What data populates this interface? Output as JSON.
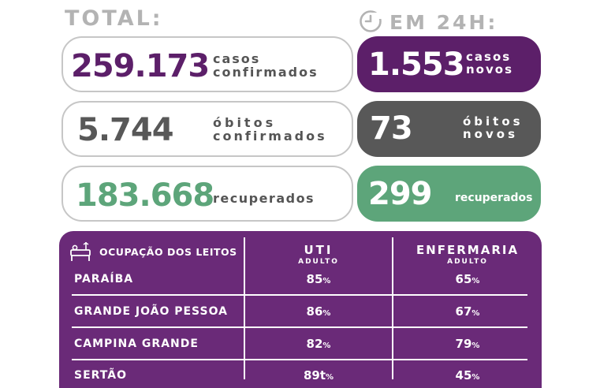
{
  "header": {
    "total": "TOTAL:",
    "last24h": "EM 24H:"
  },
  "icons": {
    "clock": "clock-24h-icon",
    "bed": "hospital-bed-icon"
  },
  "colors": {
    "purple": "#5c1f69",
    "gray": "#585858",
    "green": "#5da57a",
    "panel": "#6a2a78"
  },
  "total": {
    "cases": {
      "value": "259.173",
      "line1": "casos",
      "line2": "confirmados"
    },
    "deaths": {
      "value": "5.744",
      "line1": "óbitos",
      "line2": "confirmados"
    },
    "recovered": {
      "value": "183.668",
      "line1": "recuperados"
    }
  },
  "last24h": {
    "cases": {
      "value": "1.553",
      "line1": "casos",
      "line2": "novos"
    },
    "deaths": {
      "value": "73",
      "line1": "óbitos",
      "line2": "novos"
    },
    "recovered": {
      "value": "299",
      "line1": "recuperados"
    }
  },
  "occupancy": {
    "title": "OCUPAÇÃO DOS LEITOS",
    "uti": {
      "label": "UTI",
      "sub": "ADULTO"
    },
    "ward": {
      "label": "ENFERMARIA",
      "sub": "ADULTO"
    },
    "rows": [
      {
        "region": "PARAÍBA",
        "uti": "85",
        "uti_unit": "%",
        "ward": "65",
        "ward_unit": "%"
      },
      {
        "region": "GRANDE JOÃO PESSOA",
        "uti": "86",
        "uti_unit": "%",
        "ward": "67",
        "ward_unit": "%"
      },
      {
        "region": "CAMPINA GRANDE",
        "uti": "82",
        "uti_unit": "%",
        "ward": "79",
        "ward_unit": "%"
      },
      {
        "region": "SERTÃO",
        "uti": "89t",
        "uti_unit": "%",
        "ward": "45",
        "ward_unit": "%"
      }
    ]
  }
}
